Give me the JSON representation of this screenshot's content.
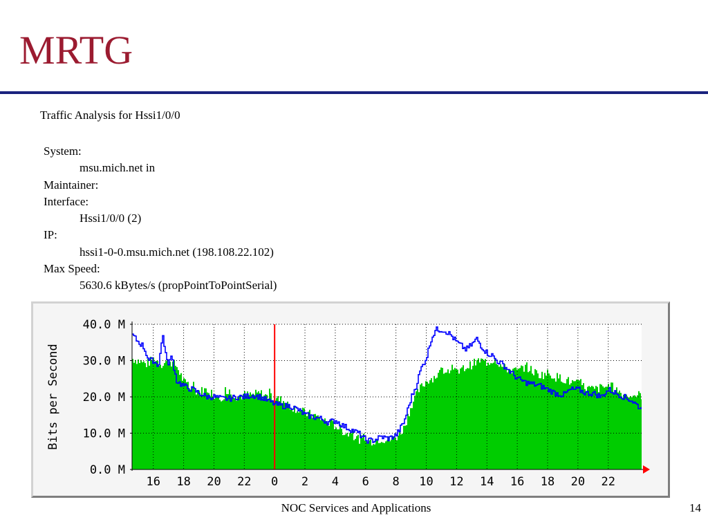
{
  "slide": {
    "title": "MRTG",
    "footer": "NOC Services and Applications",
    "page_number": "14"
  },
  "info": {
    "heading": "Traffic Analysis for Hssi1/0/0",
    "system_label": "System:",
    "system_value": "msu.mich.net in",
    "maintainer_label": "Maintainer:",
    "interface_label": "Interface:",
    "interface_value": "Hssi1/0/0 (2)",
    "ip_label": "IP:",
    "ip_value": "hssi1-0-0.msu.mich.net (198.108.22.102)",
    "max_speed_label": "Max Speed:",
    "max_speed_value": "5630.6 kBytes/s (propPointToPointSerial)"
  },
  "chart_data": {
    "type": "area",
    "ylabel": "Bits per Second",
    "ylim": [
      0,
      40
    ],
    "yticks": [
      0,
      10,
      20,
      30,
      40
    ],
    "ytick_labels": [
      "0.0 M",
      "10.0 M",
      "20.0 M",
      "30.0 M",
      "40.0 M"
    ],
    "xlim": [
      14.6,
      48.2
    ],
    "xticks": [
      16,
      18,
      20,
      22,
      24,
      26,
      28,
      30,
      32,
      34,
      36,
      38,
      40,
      42,
      44,
      46
    ],
    "xtick_labels": [
      "16",
      "18",
      "20",
      "22",
      "0",
      "2",
      "4",
      "6",
      "8",
      "10",
      "12",
      "14",
      "16",
      "18",
      "20",
      "22"
    ],
    "grid": true,
    "midnight_marker_x": 24,
    "colors": {
      "incoming": "#00cc00",
      "outgoing": "#0000ff",
      "midnight": "#ff0000",
      "grid": "#000000",
      "plot_background": "#ffffff"
    },
    "series": [
      {
        "kind": "incoming",
        "style": "area",
        "x": [
          14.6,
          15.0,
          15.5,
          16.0,
          16.5,
          17.0,
          17.5,
          18.0,
          18.5,
          19.0,
          19.5,
          20.0,
          20.5,
          21.0,
          21.5,
          22.0,
          22.5,
          23.0,
          23.5,
          24.0,
          24.5,
          25.0,
          25.5,
          26.0,
          26.5,
          27.0,
          27.5,
          28.0,
          28.5,
          29.0,
          29.5,
          30.0,
          30.5,
          31.0,
          31.5,
          32.0,
          32.5,
          33.0,
          33.5,
          34.0,
          34.5,
          35.0,
          35.5,
          36.0,
          36.5,
          37.0,
          37.5,
          38.0,
          38.5,
          39.0,
          39.5,
          40.0,
          40.5,
          41.0,
          41.5,
          42.0,
          42.5,
          43.0,
          43.5,
          44.0,
          44.5,
          45.0,
          45.5,
          46.0,
          46.5,
          47.0,
          47.5,
          48.2
        ],
        "values": [
          30.5,
          30,
          29,
          30.5,
          29,
          30,
          28.5,
          24,
          22,
          21.5,
          22,
          20.5,
          20,
          21.5,
          20,
          20.5,
          20.5,
          21,
          20,
          19.5,
          19,
          17.5,
          16.5,
          15.5,
          15,
          14,
          13,
          12,
          10.5,
          9.5,
          8.5,
          7.5,
          8,
          8.5,
          8,
          9,
          11.5,
          18,
          22,
          24.5,
          25.5,
          27,
          27.5,
          26.5,
          28,
          29,
          30,
          29.5,
          30.5,
          28,
          27.5,
          27,
          28.5,
          27,
          26,
          26.5,
          25.5,
          25,
          24,
          23.5,
          22.5,
          22,
          22.5,
          23,
          22,
          20.5,
          20.5,
          20.5
        ]
      },
      {
        "kind": "outgoing",
        "style": "line",
        "x": [
          14.6,
          14.9,
          15.3,
          15.7,
          16.0,
          16.3,
          16.6,
          16.9,
          17.2,
          17.5,
          17.8,
          18.2,
          18.6,
          19.0,
          19.5,
          20.0,
          20.5,
          21.0,
          21.5,
          22.0,
          22.5,
          23.0,
          23.5,
          24.0,
          24.5,
          25.0,
          25.5,
          26.0,
          26.5,
          27.0,
          27.5,
          28.0,
          28.5,
          29.0,
          29.5,
          30.0,
          30.5,
          31.0,
          31.5,
          32.0,
          32.5,
          33.0,
          33.3,
          33.6,
          34.0,
          34.3,
          34.6,
          35.0,
          35.3,
          35.6,
          36.0,
          36.3,
          36.6,
          37.0,
          37.3,
          37.6,
          38.0,
          38.3,
          38.6,
          39.0,
          39.5,
          40.0,
          40.5,
          41.0,
          41.5,
          42.0,
          42.5,
          43.0,
          43.5,
          44.0,
          44.5,
          45.0,
          45.5,
          46.0,
          46.5,
          47.0,
          47.5,
          47.8,
          48.2
        ],
        "values": [
          37,
          35.5,
          34,
          30,
          30,
          28.5,
          37,
          29,
          31,
          24.5,
          23.5,
          22.5,
          22,
          21,
          20,
          20,
          19.5,
          19.5,
          20,
          20,
          20.5,
          20,
          19,
          18,
          17.5,
          17.5,
          16.5,
          15,
          14.5,
          14,
          13,
          13.5,
          12,
          11,
          10,
          8,
          8,
          9,
          8.5,
          9.5,
          13,
          20,
          23,
          27.5,
          31,
          36,
          38.5,
          38.5,
          38,
          37,
          35,
          34,
          33,
          34.5,
          36,
          34,
          32,
          31.5,
          30,
          29,
          27,
          25,
          24,
          23.5,
          23,
          22,
          21,
          20.5,
          22,
          22,
          21,
          21,
          20,
          22,
          21,
          20,
          19,
          18,
          16.5
        ]
      }
    ]
  }
}
